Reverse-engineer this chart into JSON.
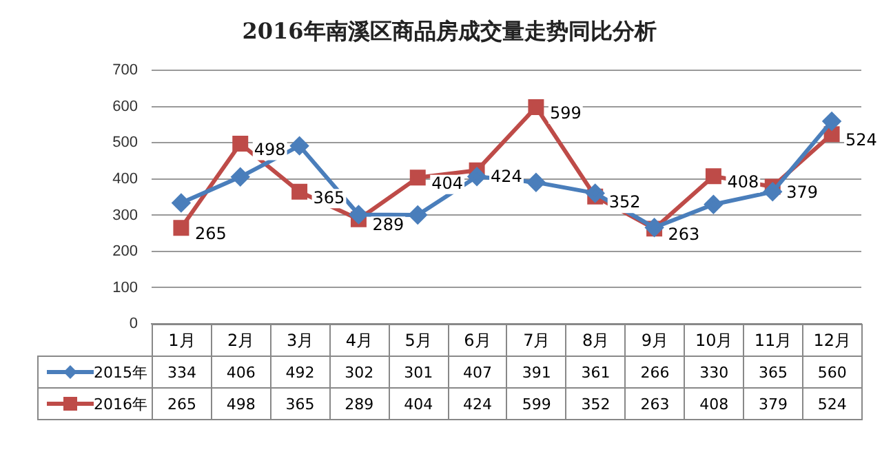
{
  "chart_data": {
    "type": "line",
    "title": "2016年南溪区商品房成交量走势同比分析",
    "categories": [
      "1月",
      "2月",
      "3月",
      "4月",
      "5月",
      "6月",
      "7月",
      "8月",
      "9月",
      "10月",
      "11月",
      "12月"
    ],
    "series": [
      {
        "name": "2015年",
        "color": "#4a7ebb",
        "marker": "diamond",
        "values": [
          334,
          406,
          492,
          302,
          301,
          407,
          391,
          361,
          266,
          330,
          365,
          560
        ]
      },
      {
        "name": "2016年",
        "color": "#be4b48",
        "marker": "square",
        "values": [
          265,
          498,
          365,
          289,
          404,
          424,
          599,
          352,
          263,
          408,
          379,
          524
        ]
      }
    ],
    "annotations": [
      {
        "text": "265",
        "x": "1月",
        "y": 265
      },
      {
        "text": "498",
        "x": "2月",
        "y": 498
      },
      {
        "text": "365",
        "x": "3月",
        "y": 365
      },
      {
        "text": "289",
        "x": "4月",
        "y": 289
      },
      {
        "text": "404",
        "x": "5月",
        "y": 404
      },
      {
        "text": "424",
        "x": "6月",
        "y": 424
      },
      {
        "text": "599",
        "x": "7月",
        "y": 599
      },
      {
        "text": "352",
        "x": "8月",
        "y": 352
      },
      {
        "text": "263",
        "x": "9月",
        "y": 263
      },
      {
        "text": "408",
        "x": "10月",
        "y": 408
      },
      {
        "text": "379",
        "x": "11月",
        "y": 379
      },
      {
        "text": "524",
        "x": "12月",
        "y": 524
      }
    ],
    "ylim": [
      0,
      700
    ],
    "yticks": [
      0,
      100,
      200,
      300,
      400,
      500,
      600,
      700
    ],
    "grid": "y",
    "legend": "bottom",
    "data_labels": true,
    "line_style": "solid"
  }
}
